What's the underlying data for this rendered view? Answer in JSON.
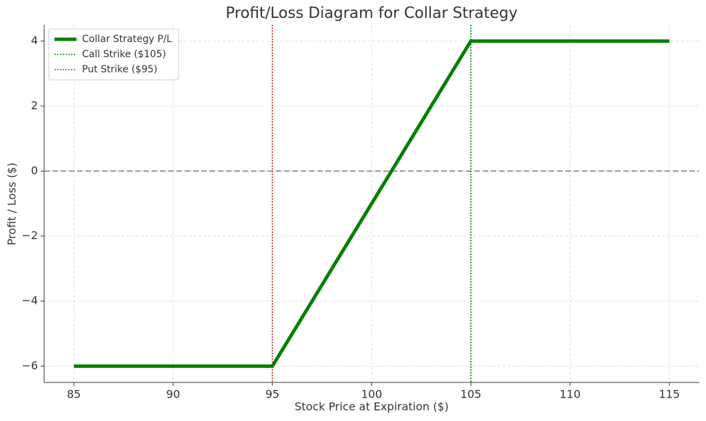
{
  "chart_data": {
    "type": "line",
    "title": "Profit/Loss Diagram for Collar Strategy",
    "xlabel": "Stock Price at Expiration ($)",
    "ylabel": "Profit / Loss ($)",
    "x": [
      85,
      95,
      105,
      115
    ],
    "series": [
      {
        "name": "Collar Strategy P/L",
        "color": "#008000",
        "values": [
          -6,
          -6,
          4,
          4
        ]
      }
    ],
    "vlines": [
      {
        "x": 105,
        "name": "Call Strike ($105)",
        "color": "#008000"
      },
      {
        "x": 95,
        "name": "Put Strike ($95)",
        "color": "#d62728"
      }
    ],
    "hlines": [
      {
        "y": 0,
        "color": "#808080"
      }
    ],
    "xlim": [
      83.5,
      116.5
    ],
    "ylim": [
      -6.5,
      4.5
    ],
    "xticks": [
      85,
      90,
      95,
      100,
      105,
      110,
      115
    ],
    "yticks": [
      {
        "value": -6,
        "label": "−6"
      },
      {
        "value": -4,
        "label": "−4"
      },
      {
        "value": -2,
        "label": "−2"
      },
      0,
      2,
      4
    ],
    "grid": true,
    "legend": "upper left"
  }
}
